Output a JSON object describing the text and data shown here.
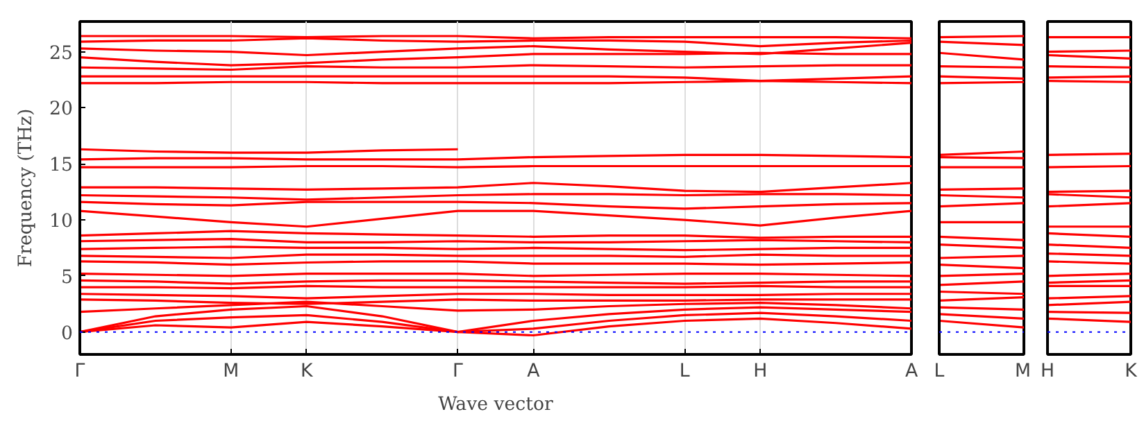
{
  "chart_data": [
    {
      "type": "line",
      "xlabel": "Wave vector",
      "ylabel": "Frequency (THz)",
      "grid": "x",
      "line_style": "solid",
      "categories": [
        "Γ",
        null,
        "M",
        "K",
        null,
        "Γ",
        "A",
        null,
        "L",
        "H",
        null,
        "A"
      ],
      "ylim": [
        -2,
        27.7
      ],
      "yticks": [
        0,
        5,
        10,
        15,
        20,
        25
      ],
      "ref_lines": [
        {
          "axis": "y",
          "value": 0,
          "color": "#0000ff",
          "line_style": "dotted"
        }
      ],
      "series": [
        {
          "color": "#ff0000",
          "values": [
            0,
            0.6,
            0.4,
            0.9,
            0.5,
            0,
            -0.3,
            0.5,
            1.0,
            1.2,
            0.8,
            0.3
          ]
        },
        {
          "color": "#ff0000",
          "values": [
            0,
            1.0,
            1.3,
            1.5,
            0.9,
            0,
            0.3,
            1.0,
            1.5,
            1.7,
            1.4,
            1.0
          ]
        },
        {
          "color": "#ff0000",
          "values": [
            0,
            1.4,
            2.0,
            2.3,
            1.4,
            0,
            1.0,
            1.6,
            2.0,
            2.2,
            2.0,
            1.8
          ]
        },
        {
          "color": "#ff0000",
          "values": [
            1.8,
            2.1,
            2.4,
            2.7,
            2.3,
            1.9,
            2.0,
            2.3,
            2.5,
            2.6,
            2.4,
            2.1
          ]
        },
        {
          "color": "#ff0000",
          "values": [
            2.9,
            2.8,
            2.6,
            2.5,
            2.7,
            2.9,
            2.8,
            2.8,
            2.8,
            2.9,
            2.9,
            2.9
          ]
        },
        {
          "color": "#ff0000",
          "values": [
            3.4,
            3.3,
            3.2,
            3.0,
            3.2,
            3.4,
            3.4,
            3.3,
            3.3,
            3.3,
            3.4,
            3.4
          ]
        },
        {
          "color": "#ff0000",
          "values": [
            4.0,
            4.0,
            3.9,
            4.1,
            4.0,
            4.0,
            4.0,
            4.0,
            4.0,
            4.1,
            4.0,
            4.0
          ]
        },
        {
          "color": "#ff0000",
          "values": [
            4.6,
            4.5,
            4.3,
            4.5,
            4.6,
            4.6,
            4.5,
            4.4,
            4.3,
            4.4,
            4.5,
            4.5
          ]
        },
        {
          "color": "#ff0000",
          "values": [
            5.2,
            5.1,
            5.0,
            5.2,
            5.2,
            5.2,
            5.0,
            5.1,
            5.2,
            5.2,
            5.1,
            5.0
          ]
        },
        {
          "color": "#ff0000",
          "values": [
            6.3,
            6.2,
            6.0,
            6.2,
            6.3,
            6.3,
            6.1,
            6.1,
            6.1,
            6.0,
            6.1,
            6.2
          ]
        },
        {
          "color": "#ff0000",
          "values": [
            6.8,
            6.7,
            6.6,
            6.9,
            6.9,
            6.8,
            6.8,
            6.8,
            6.7,
            6.9,
            6.8,
            6.8
          ]
        },
        {
          "color": "#ff0000",
          "values": [
            7.4,
            7.5,
            7.6,
            7.5,
            7.5,
            7.4,
            7.5,
            7.4,
            7.3,
            7.4,
            7.5,
            7.5
          ]
        },
        {
          "color": "#ff0000",
          "values": [
            8.1,
            8.2,
            8.3,
            8.0,
            8.0,
            8.1,
            8.0,
            8.0,
            8.1,
            8.2,
            8.1,
            8.0
          ]
        },
        {
          "color": "#ff0000",
          "values": [
            8.6,
            8.8,
            9.0,
            8.8,
            8.7,
            8.6,
            8.5,
            8.6,
            8.6,
            8.4,
            8.5,
            8.5
          ]
        },
        {
          "color": "#ff0000",
          "values": [
            10.8,
            10.3,
            9.8,
            9.4,
            10.1,
            10.8,
            10.8,
            10.4,
            10.0,
            9.5,
            10.2,
            10.8
          ]
        },
        {
          "color": "#ff0000",
          "values": [
            11.6,
            11.4,
            11.3,
            11.6,
            11.6,
            11.6,
            11.5,
            11.2,
            11.0,
            11.2,
            11.4,
            11.5
          ]
        },
        {
          "color": "#ff0000",
          "values": [
            12.2,
            12.1,
            12.0,
            11.8,
            12.0,
            12.2,
            12.3,
            12.3,
            12.2,
            12.3,
            12.3,
            12.2
          ]
        },
        {
          "color": "#ff0000",
          "values": [
            12.9,
            12.9,
            12.8,
            12.7,
            12.8,
            12.9,
            13.3,
            13.0,
            12.6,
            12.5,
            12.9,
            13.3
          ]
        },
        {
          "color": "#ff0000",
          "values": [
            14.7,
            14.7,
            14.7,
            14.8,
            14.8,
            14.7,
            14.8,
            14.8,
            14.8,
            14.8,
            14.8,
            14.8
          ]
        },
        {
          "color": "#ff0000",
          "values": [
            15.4,
            15.5,
            15.5,
            15.4,
            15.4,
            15.4,
            15.6,
            15.7,
            15.8,
            15.8,
            15.7,
            15.6
          ]
        },
        {
          "color": "#ff0000",
          "values": [
            16.3,
            16.1,
            16.0,
            16.0,
            16.2,
            16.3,
            null,
            null,
            null,
            null,
            null,
            null
          ]
        },
        {
          "color": "#ff0000",
          "values": [
            22.2,
            22.2,
            22.3,
            22.3,
            22.2,
            22.2,
            22.2,
            22.2,
            22.3,
            22.4,
            22.3,
            22.2
          ]
        },
        {
          "color": "#ff0000",
          "values": [
            22.8,
            22.8,
            22.8,
            22.8,
            22.8,
            22.8,
            22.8,
            22.8,
            22.7,
            22.4,
            22.6,
            22.8
          ]
        },
        {
          "color": "#ff0000",
          "values": [
            23.6,
            23.5,
            23.4,
            23.7,
            23.6,
            23.6,
            23.8,
            23.7,
            23.6,
            23.7,
            23.8,
            23.8
          ]
        },
        {
          "color": "#ff0000",
          "values": [
            24.5,
            24.1,
            23.8,
            24.0,
            24.3,
            24.5,
            24.8,
            24.8,
            24.8,
            24.9,
            24.8,
            24.8
          ]
        },
        {
          "color": "#ff0000",
          "values": [
            25.3,
            25.1,
            25.0,
            24.7,
            25.0,
            25.3,
            25.5,
            25.2,
            25.0,
            24.8,
            25.3,
            25.8
          ]
        },
        {
          "color": "#ff0000",
          "values": [
            25.9,
            26.0,
            26.0,
            26.2,
            26.0,
            25.9,
            26.0,
            26.0,
            25.9,
            25.5,
            25.8,
            26.0
          ]
        },
        {
          "color": "#ff0000",
          "values": [
            26.4,
            26.4,
            26.4,
            26.3,
            26.4,
            26.4,
            26.2,
            26.3,
            26.3,
            26.3,
            26.3,
            26.2
          ]
        }
      ]
    },
    {
      "type": "line",
      "tick_labels": "x",
      "line_style": "solid",
      "categories": [
        "L",
        "M"
      ],
      "ylim": [
        -2,
        27.7
      ],
      "ref_lines": [
        {
          "axis": "y",
          "value": 0,
          "color": "#0000ff",
          "line_style": "dotted"
        }
      ],
      "series": [
        {
          "color": "#ff0000",
          "values": [
            1.0,
            0.4
          ]
        },
        {
          "color": "#ff0000",
          "values": [
            1.6,
            1.2
          ]
        },
        {
          "color": "#ff0000",
          "values": [
            2.2,
            2.0
          ]
        },
        {
          "color": "#ff0000",
          "values": [
            2.8,
            3.1
          ]
        },
        {
          "color": "#ff0000",
          "values": [
            3.6,
            3.4
          ]
        },
        {
          "color": "#ff0000",
          "values": [
            4.2,
            4.5
          ]
        },
        {
          "color": "#ff0000",
          "values": [
            5.0,
            5.2
          ]
        },
        {
          "color": "#ff0000",
          "values": [
            6.0,
            5.7
          ]
        },
        {
          "color": "#ff0000",
          "values": [
            6.6,
            6.8
          ]
        },
        {
          "color": "#ff0000",
          "values": [
            7.8,
            7.5
          ]
        },
        {
          "color": "#ff0000",
          "values": [
            8.5,
            8.2
          ]
        },
        {
          "color": "#ff0000",
          "values": [
            9.8,
            9.8
          ]
        },
        {
          "color": "#ff0000",
          "values": [
            11.2,
            11.5
          ]
        },
        {
          "color": "#ff0000",
          "values": [
            12.2,
            12.0
          ]
        },
        {
          "color": "#ff0000",
          "values": [
            12.7,
            12.8
          ]
        },
        {
          "color": "#ff0000",
          "values": [
            14.7,
            14.7
          ]
        },
        {
          "color": "#ff0000",
          "values": [
            15.6,
            15.5
          ]
        },
        {
          "color": "#ff0000",
          "values": [
            15.8,
            16.1
          ]
        },
        {
          "color": "#ff0000",
          "values": [
            22.2,
            22.3
          ]
        },
        {
          "color": "#ff0000",
          "values": [
            22.8,
            22.6
          ]
        },
        {
          "color": "#ff0000",
          "values": [
            23.7,
            23.6
          ]
        },
        {
          "color": "#ff0000",
          "values": [
            24.9,
            24.3
          ]
        },
        {
          "color": "#ff0000",
          "values": [
            25.9,
            25.6
          ]
        },
        {
          "color": "#ff0000",
          "values": [
            26.3,
            26.4
          ]
        }
      ]
    },
    {
      "type": "line",
      "tick_labels": "x",
      "line_style": "solid",
      "categories": [
        "H",
        "K"
      ],
      "ylim": [
        -2,
        27.7
      ],
      "ref_lines": [
        {
          "axis": "y",
          "value": 0,
          "color": "#0000ff",
          "line_style": "dotted"
        }
      ],
      "series": [
        {
          "color": "#ff0000",
          "values": [
            1.2,
            0.9
          ]
        },
        {
          "color": "#ff0000",
          "values": [
            1.8,
            1.7
          ]
        },
        {
          "color": "#ff0000",
          "values": [
            2.4,
            2.7
          ]
        },
        {
          "color": "#ff0000",
          "values": [
            3.0,
            3.2
          ]
        },
        {
          "color": "#ff0000",
          "values": [
            4.1,
            4.1
          ]
        },
        {
          "color": "#ff0000",
          "values": [
            4.4,
            4.6
          ]
        },
        {
          "color": "#ff0000",
          "values": [
            5.0,
            5.2
          ]
        },
        {
          "color": "#ff0000",
          "values": [
            6.3,
            6.1
          ]
        },
        {
          "color": "#ff0000",
          "values": [
            7.0,
            6.8
          ]
        },
        {
          "color": "#ff0000",
          "values": [
            7.8,
            7.5
          ]
        },
        {
          "color": "#ff0000",
          "values": [
            8.8,
            8.5
          ]
        },
        {
          "color": "#ff0000",
          "values": [
            9.4,
            9.4
          ]
        },
        {
          "color": "#ff0000",
          "values": [
            11.2,
            11.5
          ]
        },
        {
          "color": "#ff0000",
          "values": [
            12.3,
            12.0
          ]
        },
        {
          "color": "#ff0000",
          "values": [
            12.5,
            12.6
          ]
        },
        {
          "color": "#ff0000",
          "values": [
            14.7,
            14.8
          ]
        },
        {
          "color": "#ff0000",
          "values": [
            15.8,
            15.9
          ]
        },
        {
          "color": "#ff0000",
          "values": [
            22.4,
            22.3
          ]
        },
        {
          "color": "#ff0000",
          "values": [
            22.7,
            22.8
          ]
        },
        {
          "color": "#ff0000",
          "values": [
            23.7,
            23.6
          ]
        },
        {
          "color": "#ff0000",
          "values": [
            24.7,
            24.4
          ]
        },
        {
          "color": "#ff0000",
          "values": [
            25.0,
            25.1
          ]
        },
        {
          "color": "#ff0000",
          "values": [
            26.3,
            26.3
          ]
        }
      ]
    }
  ]
}
